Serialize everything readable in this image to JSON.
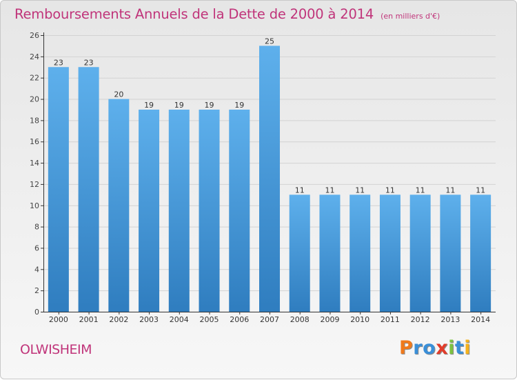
{
  "chart_data": {
    "type": "bar",
    "title": "Remboursements Annuels de la Dette de 2000 à 2014",
    "unit": "(en milliers d'€)",
    "categories": [
      "2000",
      "2001",
      "2002",
      "2003",
      "2004",
      "2005",
      "2006",
      "2007",
      "2008",
      "2009",
      "2010",
      "2011",
      "2012",
      "2013",
      "2014"
    ],
    "values": [
      23,
      23,
      20,
      19,
      19,
      19,
      19,
      25,
      11,
      11,
      11,
      11,
      11,
      11,
      11
    ],
    "ylim": [
      0,
      26
    ],
    "yticks": [
      0,
      2,
      4,
      6,
      8,
      10,
      12,
      14,
      16,
      18,
      20,
      22,
      24,
      26
    ],
    "grid": true,
    "bar_color_top": "#5eb0ec",
    "bar_color_bottom": "#2f7dbf"
  },
  "footer": {
    "commune": "OLWISHEIM",
    "brand": {
      "letters": [
        "P",
        "r",
        "o",
        "x",
        "i",
        "t",
        "i"
      ],
      "colors": [
        "#f07a1c",
        "#3a8fd8",
        "#3a8fd8",
        "#e23c2a",
        "#7cc242",
        "#3a8fd8",
        "#f5b21c"
      ]
    }
  },
  "colors": {
    "title": "#c0347a",
    "axis": "#333333",
    "grid": "#d2d2d2"
  }
}
